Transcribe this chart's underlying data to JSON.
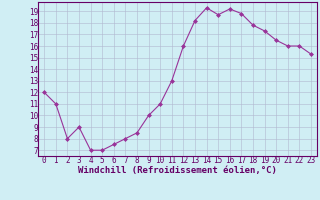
{
  "x": [
    0,
    1,
    2,
    3,
    4,
    5,
    6,
    7,
    8,
    9,
    10,
    11,
    12,
    13,
    14,
    15,
    16,
    17,
    18,
    19,
    20,
    21,
    22,
    23
  ],
  "y": [
    12,
    11,
    8,
    9,
    7,
    7,
    7.5,
    8,
    8.5,
    10,
    11,
    13,
    16,
    18.2,
    19.3,
    18.7,
    19.2,
    18.8,
    17.8,
    17.3,
    16.5,
    16,
    16,
    15.3
  ],
  "line_color": "#993399",
  "marker": "D",
  "markersize": 2.0,
  "linewidth": 0.8,
  "xlabel": "Windchill (Refroidissement éolien,°C)",
  "xlabel_fontsize": 6.5,
  "xlim": [
    -0.5,
    23.5
  ],
  "ylim": [
    6.5,
    19.8
  ],
  "yticks": [
    7,
    8,
    9,
    10,
    11,
    12,
    13,
    14,
    15,
    16,
    17,
    18,
    19
  ],
  "xticks": [
    0,
    1,
    2,
    3,
    4,
    5,
    6,
    7,
    8,
    9,
    10,
    11,
    12,
    13,
    14,
    15,
    16,
    17,
    18,
    19,
    20,
    21,
    22,
    23
  ],
  "background_color": "#d0eef4",
  "grid_color": "#b0b8d0",
  "tick_fontsize": 5.5,
  "spine_color": "#660066",
  "text_color": "#660066"
}
